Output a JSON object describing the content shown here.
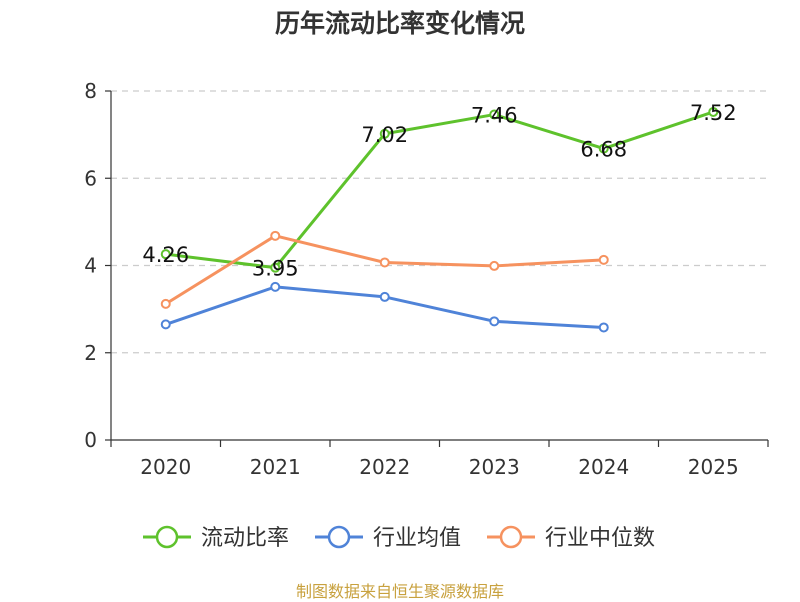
{
  "chart_data": {
    "type": "line",
    "title": "历年流动比率变化情况",
    "categories": [
      "2020",
      "2021",
      "2022",
      "2023",
      "2024",
      "2025"
    ],
    "ylim": [
      0,
      8
    ],
    "yticks": [
      "0",
      "2",
      "4",
      "6",
      "8"
    ],
    "grid": true,
    "legend_position": "bottom",
    "series": [
      {
        "name": "流动比率",
        "color": "#5ec22c",
        "values": [
          4.26,
          3.95,
          7.02,
          7.46,
          6.68,
          7.52
        ],
        "labels": [
          "4.26",
          "3.95",
          "7.02",
          "7.46",
          "6.68",
          "7.52"
        ],
        "show_labels": true
      },
      {
        "name": "行业均值",
        "color": "#4f83d8",
        "values": [
          2.65,
          3.51,
          3.28,
          2.72,
          2.58,
          null
        ],
        "show_labels": false
      },
      {
        "name": "行业中位数",
        "color": "#f6925f",
        "values": [
          3.12,
          4.68,
          4.07,
          3.99,
          4.13,
          null
        ],
        "show_labels": false
      }
    ]
  },
  "source": "制图数据来自恒生聚源数据库"
}
